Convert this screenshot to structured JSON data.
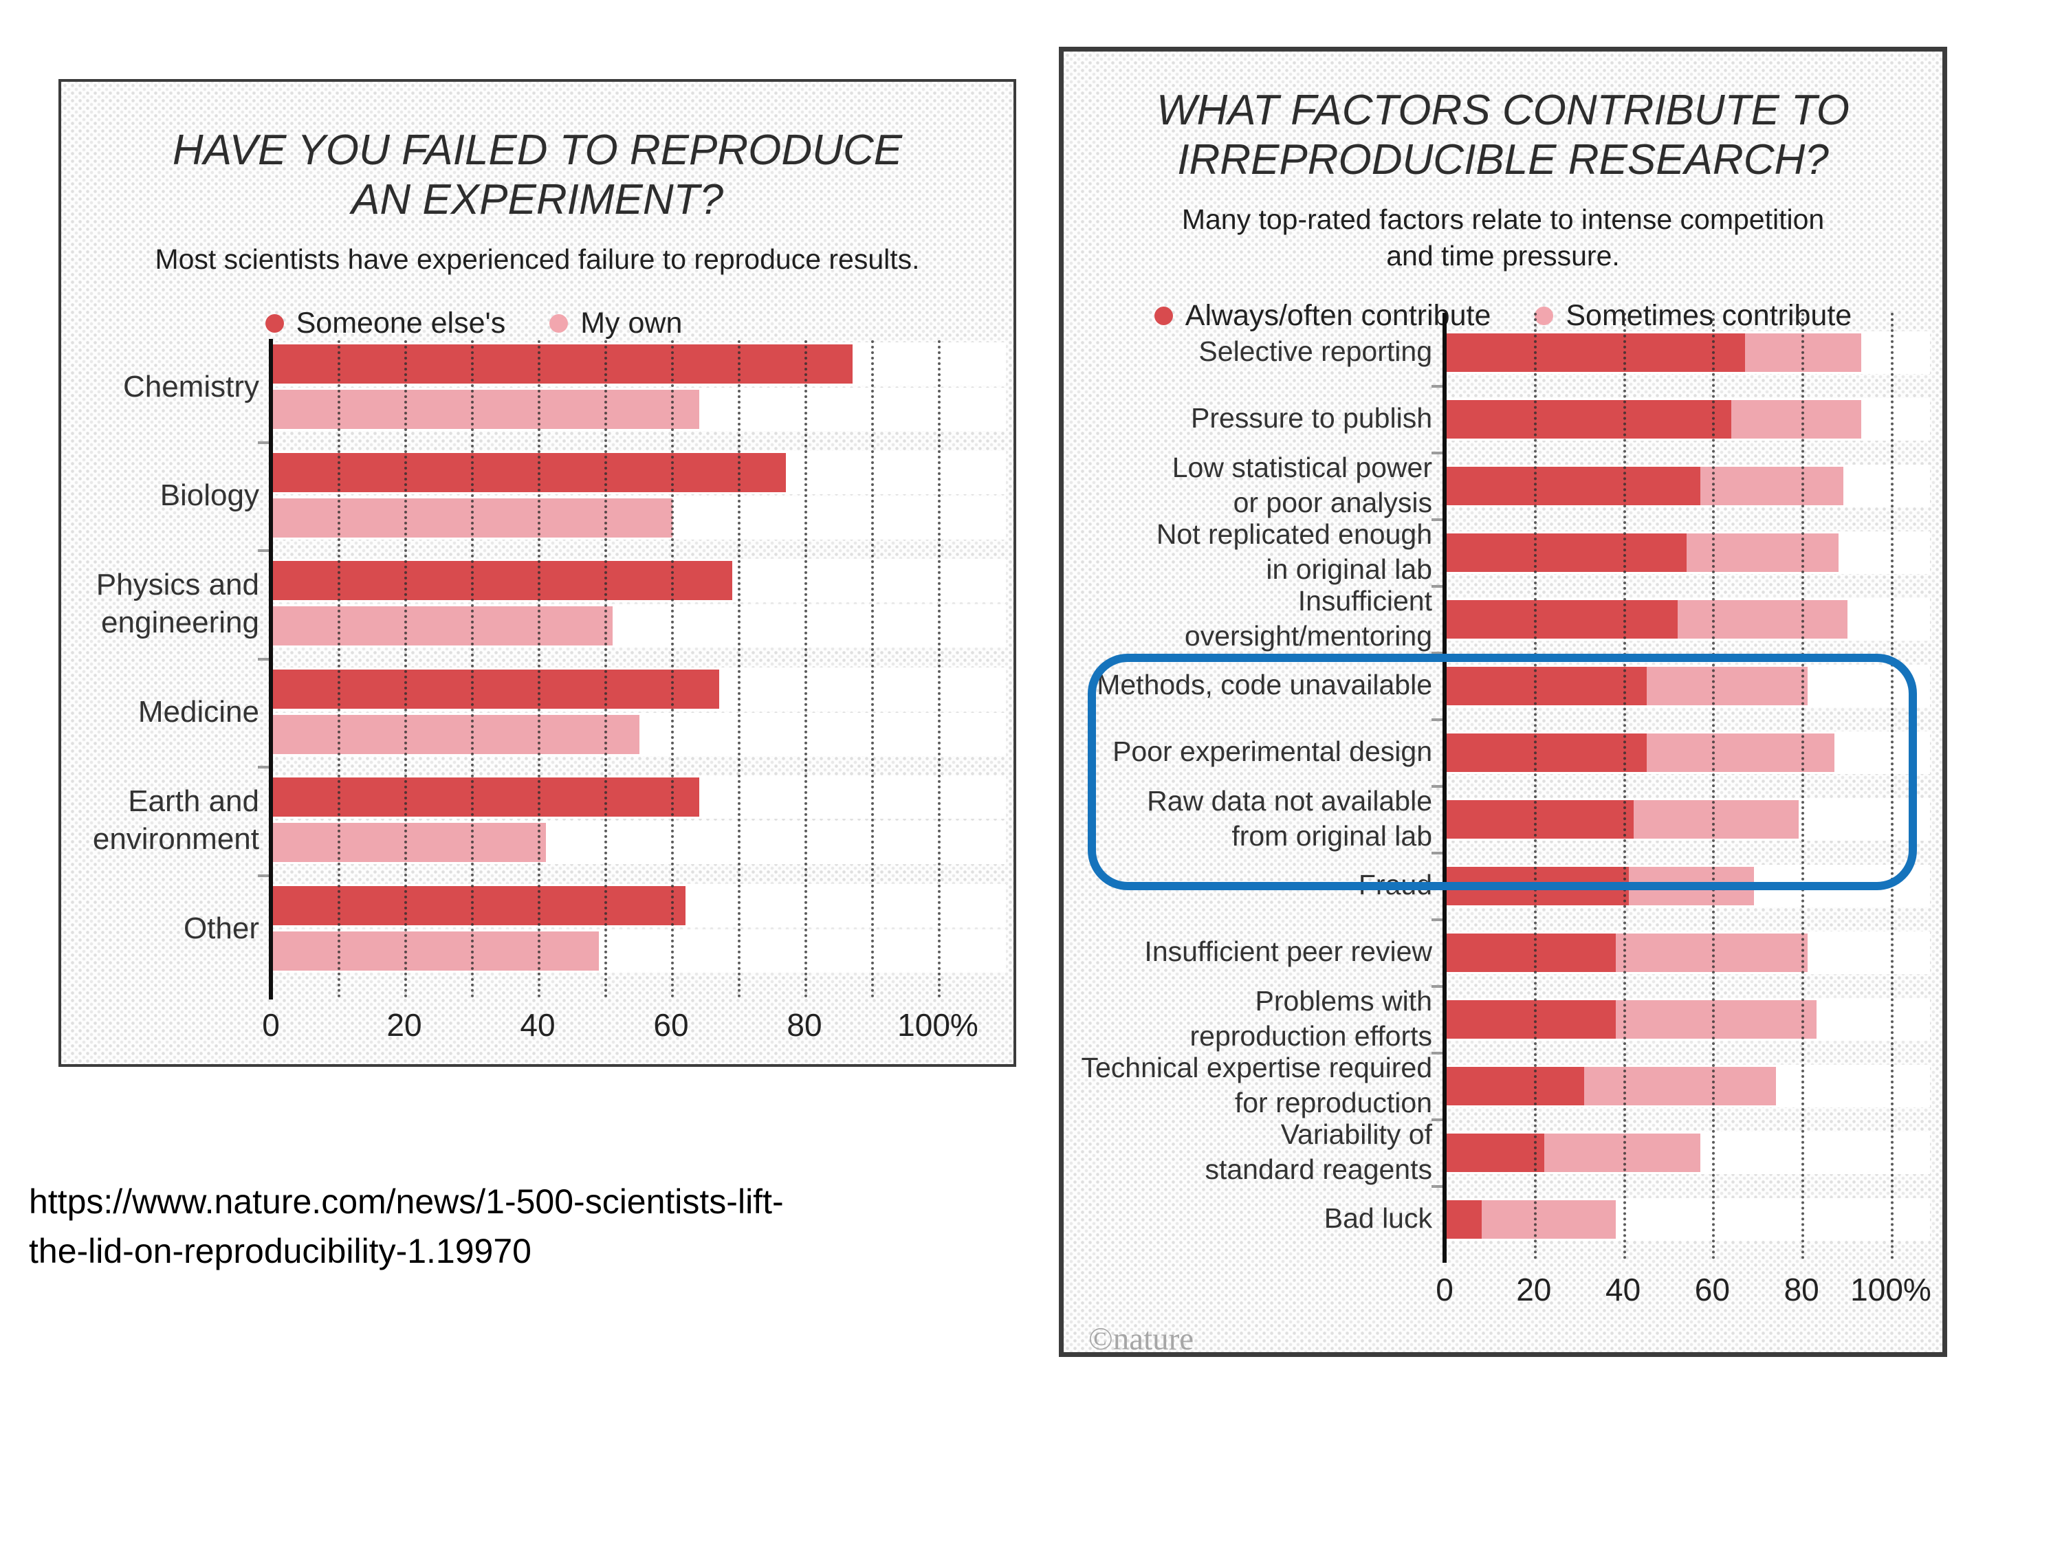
{
  "credit": "©nature",
  "source_url": {
    "line1": "https://www.nature.com/news/1-500-scientists-lift-",
    "line2": "the-lid-on-reproducibility-1.19970"
  },
  "colors": {
    "dark_red": "#d84b4e",
    "pink": "#efa7af",
    "legend_pink": "#f2a6ae",
    "highlight_blue": "#1573bc",
    "panel_border": "#3c3c3c",
    "grid_dot": "#2d2d2d"
  },
  "highlighted_factors": [
    "Methods, code unavailable",
    "Poor experimental design",
    "Raw data not available from original lab"
  ],
  "chart_data": [
    {
      "type": "bar",
      "orientation": "horizontal",
      "grid": "dotted-vertical",
      "title_lines": [
        "HAVE YOU FAILED TO REPRODUCE",
        "AN EXPERIMENT?"
      ],
      "subtitle_lines": [
        "Most scientists have experienced failure to reproduce results."
      ],
      "legend": [
        {
          "label": "Someone else's",
          "color": "#d84b4e"
        },
        {
          "label": "My own",
          "color": "#f2a6ae"
        }
      ],
      "categories": [
        "Chemistry",
        "Biology",
        "Physics and\nengineering",
        "Medicine",
        "Earth and\nenvironment",
        "Other"
      ],
      "series": [
        {
          "name": "Someone else's",
          "color": "#d84b4e",
          "values": [
            87,
            77,
            69,
            67,
            64,
            62
          ]
        },
        {
          "name": "My own",
          "color": "#efa7af",
          "values": [
            64,
            60,
            51,
            55,
            41,
            49
          ]
        }
      ],
      "xlim": [
        0,
        100
      ],
      "gridline_step": 10,
      "x_tick_values": [
        0,
        20,
        40,
        60,
        80,
        100
      ],
      "x_tick_labels": [
        "0",
        "20",
        "40",
        "60",
        "80",
        "100%"
      ]
    },
    {
      "type": "bar",
      "orientation": "horizontal",
      "variant": "stacked",
      "grid": "dotted-vertical",
      "title_lines": [
        "WHAT FACTORS CONTRIBUTE TO",
        "IRREPRODUCIBLE RESEARCH?"
      ],
      "subtitle_lines": [
        "Many top-rated factors relate to intense competition",
        "and time pressure."
      ],
      "legend": [
        {
          "label": "Always/often contribute",
          "color": "#d84b4e"
        },
        {
          "label": "Sometimes contribute",
          "color": "#f2a6ae"
        }
      ],
      "categories": [
        "Selective reporting",
        "Pressure to publish",
        "Low statistical power\nor poor analysis",
        "Not replicated enough\nin original lab",
        "Insufficient\noversight/mentoring",
        "Methods, code unavailable",
        "Poor experimental design",
        "Raw data not available\nfrom original lab",
        "Fraud",
        "Insufficient peer review",
        "Problems with\nreproduction efforts",
        "Technical expertise required\nfor reproduction",
        "Variability of\nstandard reagents",
        "Bad luck"
      ],
      "series": [
        {
          "name": "Always/often contribute",
          "color": "#d84b4e",
          "values": [
            67,
            64,
            57,
            54,
            52,
            45,
            45,
            42,
            41,
            38,
            38,
            31,
            22,
            8
          ]
        },
        {
          "name": "Sometimes contribute",
          "color": "#efa7af",
          "values": [
            26,
            29,
            32,
            34,
            38,
            36,
            42,
            37,
            28,
            43,
            45,
            43,
            35,
            30
          ]
        }
      ],
      "totals": [
        93,
        93,
        89,
        88,
        90,
        81,
        87,
        79,
        69,
        81,
        83,
        74,
        57,
        38
      ],
      "xlim": [
        0,
        100
      ],
      "gridline_step": 20,
      "x_tick_values": [
        0,
        20,
        40,
        60,
        80,
        100
      ],
      "x_tick_labels": [
        "0",
        "20",
        "40",
        "60",
        "80",
        "100%"
      ]
    }
  ]
}
